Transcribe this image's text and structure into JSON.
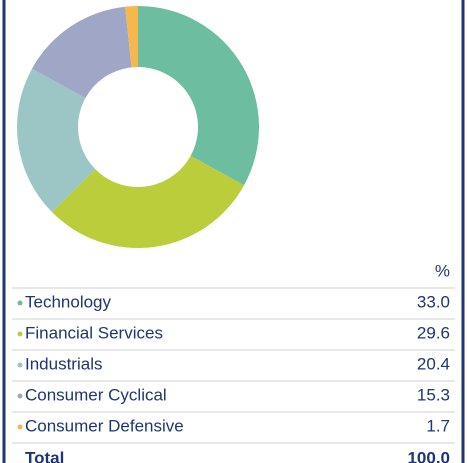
{
  "chart_data": {
    "type": "donut",
    "categories": [
      "Technology",
      "Financial Services",
      "Industrials",
      "Consumer Cyclical",
      "Consumer Defensive"
    ],
    "values": [
      33.0,
      29.6,
      20.4,
      15.3,
      1.7
    ],
    "value_labels": [
      "33.0",
      "29.6",
      "20.4",
      "15.3",
      "1.7"
    ],
    "colors": [
      "#6dbea0",
      "#bccd3c",
      "#9cc5c5",
      "#a0a7c6",
      "#f6b84c"
    ],
    "column_header": "%",
    "total": {
      "label": "Total",
      "value": "100.0"
    }
  }
}
